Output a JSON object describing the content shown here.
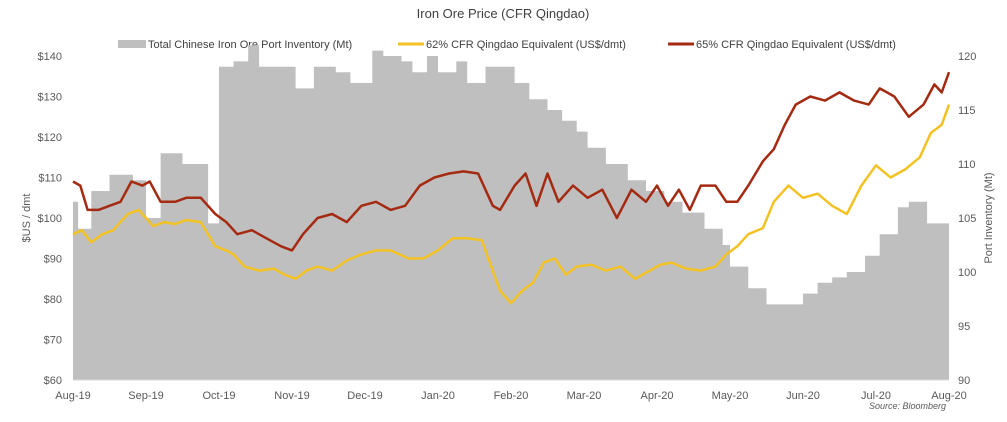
{
  "chart_data": {
    "type": "line",
    "title": "Iron Ore Price (CFR Qingdao)",
    "ylabel": "$US / dmt",
    "y2label": "Port Inventory (Mt)",
    "source": "Source: Bloomberg",
    "ylim": [
      60,
      140
    ],
    "yticks": [
      "$60",
      "$70",
      "$80",
      "$90",
      "$100",
      "$110",
      "$120",
      "$130",
      "$140"
    ],
    "y2lim": [
      90,
      120
    ],
    "y2ticks": [
      "90",
      "95",
      "100",
      "105",
      "110",
      "115",
      "120"
    ],
    "xlim": [
      0,
      12
    ],
    "xticks": [
      "Aug-19",
      "Sep-19",
      "Oct-19",
      "Nov-19",
      "Dec-19",
      "Jan-20",
      "Feb-20",
      "Mar-20",
      "Apr-20",
      "May-20",
      "Jun-20",
      "Jul-20",
      "Aug-20"
    ],
    "colors": {
      "inventory": "#bfbfbf",
      "p62": "#f2c224",
      "p65": "#a52a12"
    },
    "legend": {
      "inventory": "Total Chinese Iron Ore Port Inventory (Mt)",
      "p62": "62% CFR Qingdao Equivalent (US$/dmt)",
      "p65": "65% CFR Qingdao Equivalent (US$/dmt)"
    },
    "series": [
      {
        "key": "inventory",
        "name": "Total Chinese Iron Ore Port Inventory (Mt)",
        "axis": "right",
        "type": "area",
        "x": [
          0,
          0.07,
          0.07,
          0.25,
          0.25,
          0.5,
          0.5,
          0.82,
          0.82,
          1.0,
          1.0,
          1.2,
          1.2,
          1.5,
          1.5,
          1.85,
          1.85,
          2.0,
          2.0,
          2.2,
          2.2,
          2.4,
          2.4,
          2.55,
          2.55,
          2.75,
          2.75,
          3.05,
          3.05,
          3.3,
          3.3,
          3.6,
          3.6,
          3.8,
          3.8,
          4.1,
          4.1,
          4.25,
          4.25,
          4.5,
          4.5,
          4.65,
          4.65,
          4.85,
          4.85,
          5.0,
          5.0,
          5.25,
          5.25,
          5.4,
          5.4,
          5.55,
          5.55,
          5.65,
          5.65,
          6.05,
          6.05,
          6.25,
          6.25,
          6.5,
          6.5,
          6.7,
          6.7,
          6.9,
          6.9,
          7.05,
          7.05,
          7.3,
          7.3,
          7.6,
          7.6,
          7.85,
          7.85,
          8.1,
          8.1,
          8.35,
          8.35,
          8.65,
          8.65,
          8.9,
          8.9,
          9.0,
          9.0,
          9.25,
          9.25,
          9.5,
          9.5,
          9.75,
          9.75,
          10.0,
          10.0,
          10.2,
          10.2,
          10.4,
          10.4,
          10.6,
          10.6,
          10.85,
          10.85,
          11.05,
          11.05,
          11.3,
          11.3,
          11.45,
          11.45,
          11.7,
          11.7,
          11.95,
          11.95,
          12.0
        ],
        "y": [
          106.5,
          106.5,
          104,
          104,
          107.5,
          107.5,
          109,
          109,
          108.5,
          108.5,
          105,
          105,
          111,
          111,
          110,
          110,
          104.5,
          104.5,
          119,
          119,
          119.5,
          119.5,
          121,
          121,
          119,
          119,
          119,
          119,
          117,
          117,
          119,
          119,
          118.5,
          118.5,
          117.5,
          117.5,
          120.5,
          120.5,
          120,
          120,
          119.5,
          119.5,
          118.5,
          118.5,
          120,
          120,
          118.5,
          118.5,
          119.5,
          119.5,
          117.5,
          117.5,
          117.5,
          117.5,
          119,
          119,
          117.5,
          117.5,
          116,
          116,
          115,
          115,
          114,
          114,
          113,
          113,
          111.5,
          111.5,
          110,
          110,
          108.5,
          108.5,
          107.5,
          107.5,
          106.5,
          106.5,
          105.5,
          105.5,
          104,
          104,
          102.5,
          102.5,
          100.5,
          100.5,
          98.5,
          98.5,
          97,
          97,
          97,
          97,
          98,
          98,
          99,
          99,
          99.5,
          99.5,
          100,
          100,
          101.5,
          101.5,
          103.5,
          103.5,
          106,
          106,
          106.5,
          106.5,
          104.5,
          104.5,
          104.5,
          104.5
        ]
      },
      {
        "key": "p62",
        "name": "62% CFR Qingdao Equivalent (US$/dmt)",
        "axis": "left",
        "type": "line",
        "x": [
          0,
          0.12,
          0.25,
          0.4,
          0.55,
          0.75,
          0.9,
          1.0,
          1.1,
          1.25,
          1.4,
          1.55,
          1.75,
          1.95,
          2.1,
          2.2,
          2.35,
          2.55,
          2.75,
          2.9,
          3.05,
          3.2,
          3.35,
          3.55,
          3.75,
          3.95,
          4.15,
          4.35,
          4.6,
          4.8,
          5.0,
          5.2,
          5.4,
          5.6,
          5.85,
          6.0,
          6.15,
          6.3,
          6.45,
          6.6,
          6.75,
          6.9,
          7.1,
          7.3,
          7.5,
          7.7,
          7.9,
          8.05,
          8.2,
          8.4,
          8.6,
          8.8,
          8.95,
          9.1,
          9.25,
          9.45,
          9.6,
          9.8,
          10.0,
          10.2,
          10.4,
          10.6,
          10.8,
          11.0,
          11.2,
          11.4,
          11.6,
          11.75,
          11.9,
          12.0
        ],
        "y": [
          96,
          97,
          94,
          96,
          97,
          101,
          102,
          100,
          98,
          99,
          98.5,
          99.5,
          99,
          93,
          92,
          91,
          88,
          87,
          87.5,
          86,
          85,
          87,
          88,
          87,
          89.5,
          91,
          92,
          92,
          90,
          90,
          92,
          95,
          95,
          94.5,
          82,
          79,
          82,
          84,
          89,
          90,
          86,
          88,
          88.5,
          87,
          88,
          85,
          87,
          88.5,
          89,
          87.5,
          87,
          88,
          91,
          93,
          96,
          97.5,
          104,
          108,
          105,
          106,
          103,
          101,
          108,
          113,
          110,
          112,
          115,
          121,
          123,
          128
        ]
      },
      {
        "key": "p65",
        "name": "65% CFR Qingdao Equivalent (US$/dmt)",
        "axis": "left",
        "type": "line",
        "x": [
          0,
          0.1,
          0.2,
          0.35,
          0.5,
          0.65,
          0.8,
          0.95,
          1.05,
          1.2,
          1.4,
          1.55,
          1.75,
          1.95,
          2.1,
          2.25,
          2.45,
          2.65,
          2.85,
          3.0,
          3.15,
          3.35,
          3.55,
          3.75,
          3.95,
          4.15,
          4.35,
          4.55,
          4.75,
          4.95,
          5.15,
          5.35,
          5.55,
          5.75,
          5.85,
          6.05,
          6.2,
          6.35,
          6.5,
          6.65,
          6.85,
          7.05,
          7.25,
          7.45,
          7.65,
          7.85,
          8.0,
          8.15,
          8.3,
          8.45,
          8.6,
          8.8,
          8.95,
          9.1,
          9.25,
          9.45,
          9.6,
          9.75,
          9.9,
          10.1,
          10.3,
          10.5,
          10.7,
          10.9,
          11.05,
          11.25,
          11.45,
          11.65,
          11.8,
          11.9,
          12.0
        ],
        "y": [
          109,
          108,
          102,
          102,
          103,
          104,
          109,
          108,
          109,
          104,
          104,
          105,
          105,
          101,
          99,
          96,
          97,
          95,
          93,
          92,
          96,
          100,
          101,
          99,
          103,
          104,
          102,
          103,
          108,
          110,
          111,
          111.5,
          111,
          103,
          102,
          108,
          111,
          103,
          111,
          104,
          108,
          105,
          107,
          100,
          107,
          104,
          108,
          103,
          107,
          102,
          108,
          108,
          104,
          104,
          108,
          114,
          117,
          123,
          128,
          130,
          129,
          131,
          129,
          128,
          132,
          130,
          125,
          128,
          133,
          131,
          136
        ]
      }
    ]
  }
}
